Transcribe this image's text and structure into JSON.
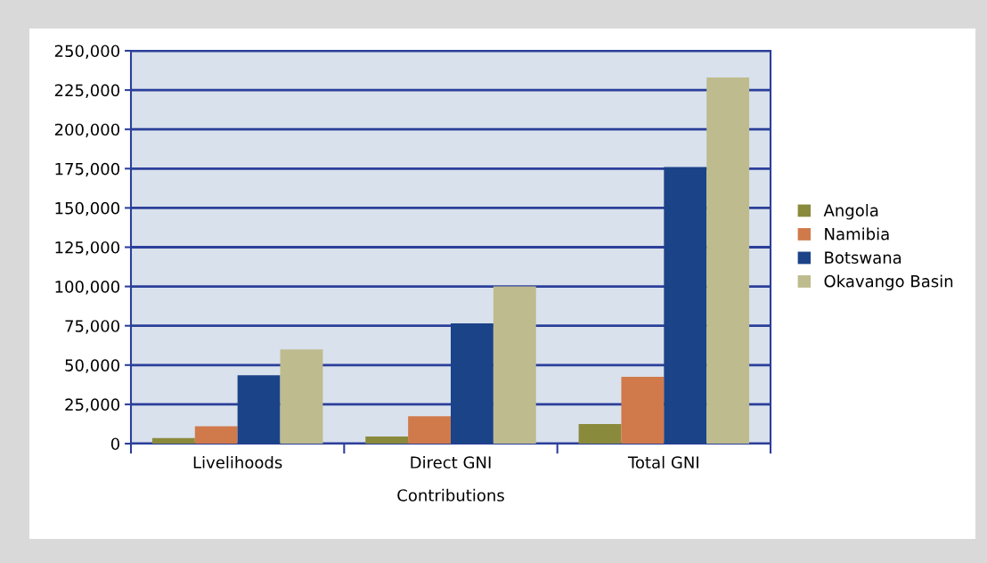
{
  "chart_data": {
    "type": "bar",
    "xlabel": "Contributions",
    "categories": [
      "Livelihoods",
      "Direct GNI",
      "Total GNI"
    ],
    "series": [
      {
        "name": "Angola",
        "color": "#8a8a3c",
        "values": [
          3500,
          4500,
          12500
        ]
      },
      {
        "name": "Namibia",
        "color": "#d07a4c",
        "values": [
          11000,
          17500,
          42500
        ]
      },
      {
        "name": "Botswana",
        "color": "#1b4388",
        "values": [
          43500,
          76500,
          176000
        ]
      },
      {
        "name": "Okavango Basin",
        "color": "#bebb8e",
        "values": [
          60000,
          100000,
          233000
        ]
      }
    ],
    "ylim": [
      0,
      250000
    ],
    "yticks": [
      {
        "value": 0,
        "label": "0"
      },
      {
        "value": 25000,
        "label": "25,000"
      },
      {
        "value": 50000,
        "label": "50,000"
      },
      {
        "value": 75000,
        "label": "75,000"
      },
      {
        "value": 100000,
        "label": "100,000"
      },
      {
        "value": 125000,
        "label": "125,000"
      },
      {
        "value": 150000,
        "label": "150,000"
      },
      {
        "value": 175000,
        "label": "175,000"
      },
      {
        "value": 200000,
        "label": "200,000"
      },
      {
        "value": 225000,
        "label": "225,000"
      },
      {
        "value": 250000,
        "label": "250,000"
      }
    ],
    "grid": "y",
    "legend": "right"
  }
}
